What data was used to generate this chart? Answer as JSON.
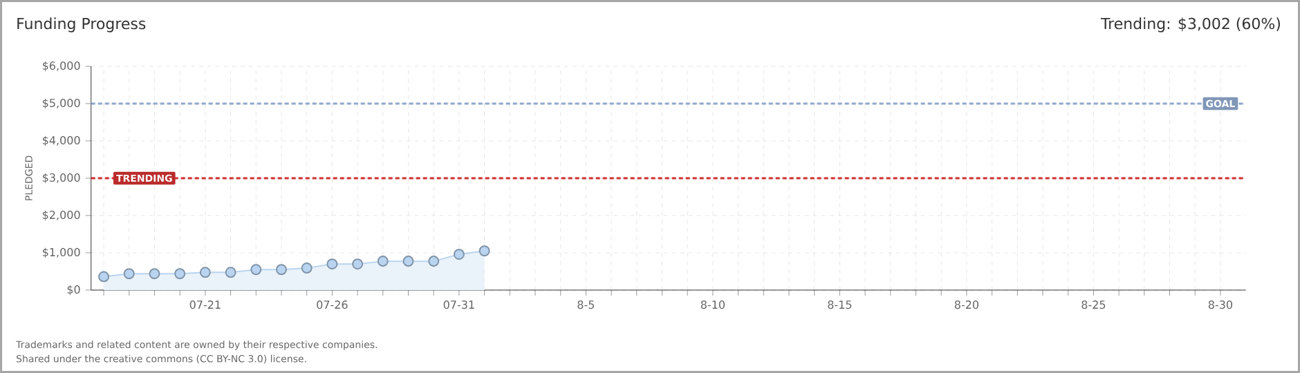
{
  "chart_data": {
    "type": "area",
    "title": "Funding Progress",
    "subtitle": "Trending: $3,002 (60%)",
    "ylabel": "PLEDGED",
    "categories": [
      null,
      null,
      null,
      null,
      "07-21",
      null,
      null,
      null,
      null,
      "07-26",
      null,
      null,
      null,
      null,
      "07-31",
      null,
      null,
      null,
      null,
      "8-5",
      null,
      null,
      null,
      null,
      "8-10",
      null,
      null,
      null,
      null,
      "8-15",
      null,
      null,
      null,
      null,
      "8-20",
      null,
      null,
      null,
      null,
      "8-25",
      null,
      null,
      null,
      null,
      "8-30"
    ],
    "series": [
      {
        "color": "#b8d4f0",
        "values": [
          360,
          440,
          440,
          440,
          475,
          475,
          550,
          550,
          590,
          700,
          700,
          775,
          775,
          775,
          960,
          1050,
          null,
          null,
          null,
          null,
          null,
          null,
          null,
          null,
          null,
          null,
          null,
          null,
          null,
          null,
          null,
          null,
          null,
          null,
          null,
          null,
          null,
          null,
          null,
          null,
          null,
          null,
          null,
          null,
          null
        ]
      }
    ],
    "ylim": [
      0,
      6000
    ],
    "yticks": [
      {
        "value": 0,
        "label": "$0"
      },
      {
        "value": 1000,
        "label": "$1,000"
      },
      {
        "value": 2000,
        "label": "$2,000"
      },
      {
        "value": 3000,
        "label": "$3,000"
      },
      {
        "value": 4000,
        "label": "$4,000"
      },
      {
        "value": 5000,
        "label": "$5,000"
      },
      {
        "value": 6000,
        "label": "$6,000"
      }
    ],
    "grid": true,
    "marker": "circle",
    "ref_lines": [
      {
        "axis": "y",
        "value": 5000,
        "label": "GOAL",
        "color": "#8fa8cc",
        "line_style": "dashed"
      },
      {
        "axis": "y",
        "value": 3000,
        "label": "TRENDING",
        "color": "#d03030",
        "line_style": "dashed"
      }
    ],
    "annotations": [
      "Trademarks and related content are owned by their respective companies.",
      "Shared under the creative commons (CC BY-NC 3.0) license."
    ]
  }
}
